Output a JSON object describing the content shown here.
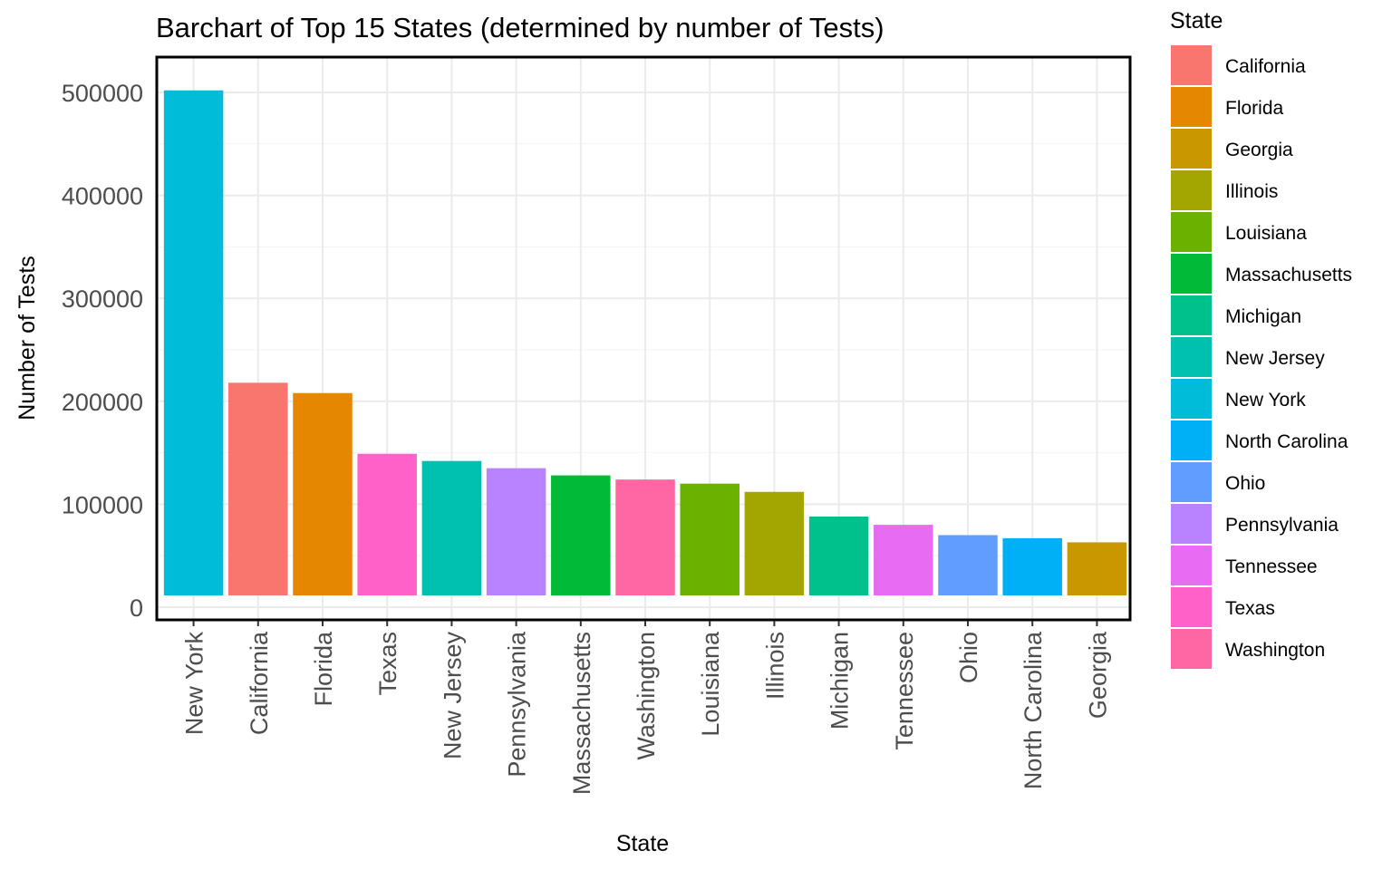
{
  "chart_data": {
    "type": "bar",
    "title": "Barchart of Top 15 States (determined by number of Tests)",
    "xlabel": "State",
    "ylabel": "Number of Tests",
    "ylim": [
      0,
      520000
    ],
    "yticks": [
      0,
      100000,
      200000,
      300000,
      400000,
      500000
    ],
    "ytick_labels": [
      "0",
      "100000",
      "200000",
      "300000",
      "400000",
      "500000"
    ],
    "grid": true,
    "legend_position": "right",
    "categories": [
      "New York",
      "California",
      "Florida",
      "Texas",
      "New Jersey",
      "Pennsylvania",
      "Massachusetts",
      "Washington",
      "Louisiana",
      "Illinois",
      "Michigan",
      "Tennessee",
      "Ohio",
      "North Carolina",
      "Georgia"
    ],
    "values": [
      502000,
      218000,
      208000,
      149000,
      142000,
      135000,
      128000,
      124000,
      120000,
      112000,
      88000,
      80000,
      70000,
      67000,
      63000
    ],
    "colors": [
      "#00BCD8",
      "#F8766D",
      "#E58700",
      "#FF61C9",
      "#00C0AF",
      "#B983FF",
      "#00BA38",
      "#FF67A4",
      "#6BB100",
      "#A3A500",
      "#00C08B",
      "#E76BF3",
      "#619CFF",
      "#00B0F6",
      "#C99800"
    ],
    "legend": {
      "title": "State",
      "entries": [
        "California",
        "Florida",
        "Georgia",
        "Illinois",
        "Louisiana",
        "Massachusetts",
        "Michigan",
        "New Jersey",
        "New York",
        "North Carolina",
        "Ohio",
        "Pennsylvania",
        "Tennessee",
        "Texas",
        "Washington"
      ],
      "colors": [
        "#F8766D",
        "#E58700",
        "#C99800",
        "#A3A500",
        "#6BB100",
        "#00BA38",
        "#00C08B",
        "#00C0AF",
        "#00BCD8",
        "#00B0F6",
        "#619CFF",
        "#B983FF",
        "#E76BF3",
        "#FF61C9",
        "#FF67A4"
      ]
    }
  }
}
